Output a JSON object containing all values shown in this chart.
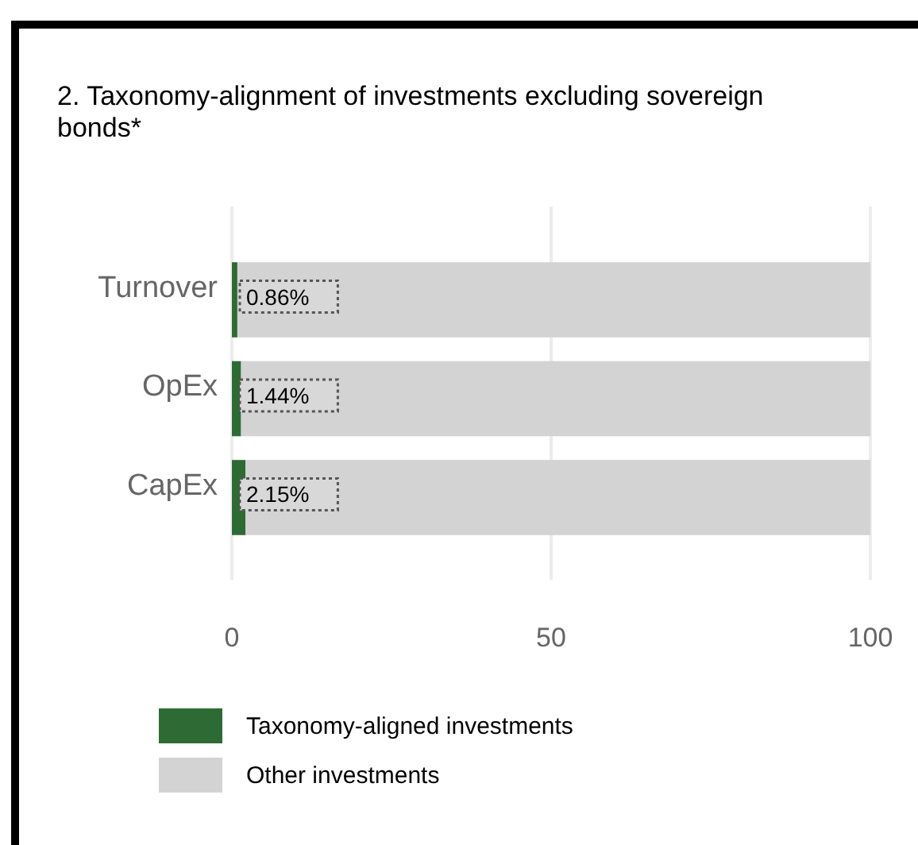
{
  "chart_data": {
    "type": "bar",
    "orientation": "horizontal",
    "stacked": true,
    "title": "2. Taxonomy-alignment of investments excluding sovereign bonds*",
    "categories": [
      "Turnover",
      "OpEx",
      "CapEx"
    ],
    "series": [
      {
        "name": "Taxonomy-aligned investments",
        "color": "#2e6b34",
        "values": [
          0.86,
          1.44,
          2.15
        ],
        "value_labels": [
          "0.86%",
          "1.44%",
          "2.15%"
        ]
      },
      {
        "name": "Other investments",
        "color": "#d3d3d3",
        "values": [
          99.14,
          98.56,
          97.85
        ]
      }
    ],
    "xlim": [
      0,
      100
    ],
    "xticks": [
      0,
      50,
      100
    ],
    "grid": "x",
    "legend": "bottom"
  }
}
